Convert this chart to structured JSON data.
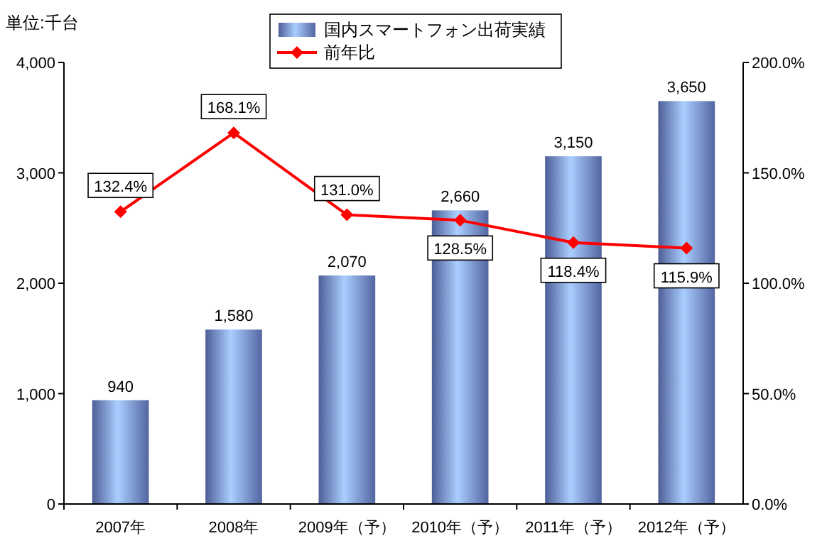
{
  "chart_data": {
    "type": "bar",
    "ylabel": "単位:千台",
    "categories": [
      "2007年",
      "2008年",
      "2009年（予）",
      "2010年（予）",
      "2011年（予）",
      "2012年（予）"
    ],
    "series": [
      {
        "name": "国内スマートフォン出荷実績",
        "color": "#6f86d6",
        "values": [
          940,
          1580,
          2070,
          2660,
          3150,
          3650
        ],
        "value_labels": [
          "940",
          "1,580",
          "2,070",
          "2,660",
          "3,150",
          "3,650"
        ]
      },
      {
        "name": "前年比",
        "type": "line",
        "axis": "y2",
        "color": "#ff0000",
        "values": [
          132.4,
          168.1,
          131.0,
          128.5,
          118.4,
          115.9
        ],
        "value_labels": [
          "132.4%",
          "168.1%",
          "131.0%",
          "128.5%",
          "118.4%",
          "115.9%"
        ]
      }
    ],
    "ylim": [
      0,
      4000
    ],
    "yticks": [
      {
        "value": 0,
        "label": "0"
      },
      {
        "value": 1000,
        "label": "1,000"
      },
      {
        "value": 2000,
        "label": "2,000"
      },
      {
        "value": 3000,
        "label": "3,000"
      },
      {
        "value": 4000,
        "label": "4,000"
      }
    ],
    "y2lim": [
      0,
      200
    ],
    "y2ticks": [
      {
        "value": 0,
        "label": "0.0%"
      },
      {
        "value": 50,
        "label": "50.0%"
      },
      {
        "value": 100,
        "label": "100.0%"
      },
      {
        "value": 150,
        "label": "150.0%"
      },
      {
        "value": 200,
        "label": "200.0%"
      }
    ],
    "marker": "diamond",
    "legend": "top",
    "grid": false
  }
}
